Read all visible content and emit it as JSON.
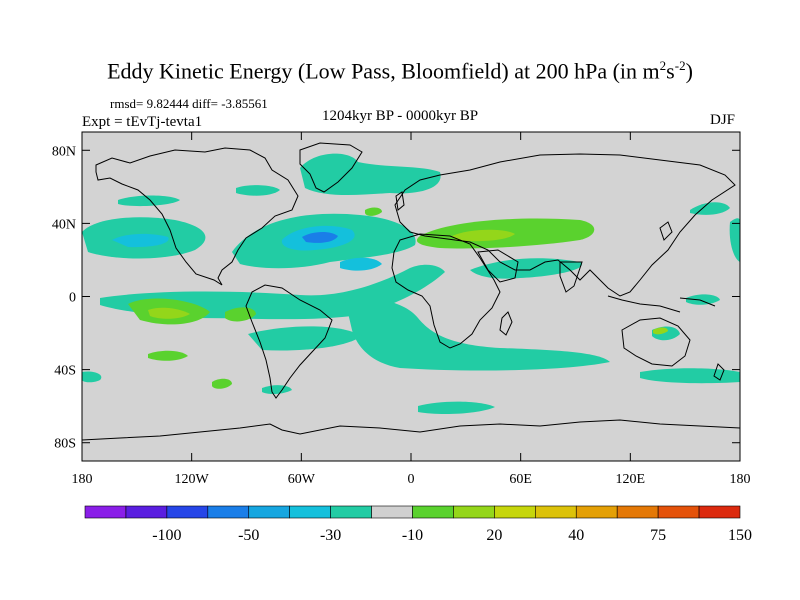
{
  "title": {
    "prefix": "Eddy Kinetic Energy (Low Pass, Bloomfield) at 200 hPa (in m",
    "sup1": "2",
    "mid": "s",
    "sup2": "-2",
    "suffix": ")"
  },
  "stats": "rmsd= 9.82444 diff= -3.85561",
  "experiment": "Expt = tEvTj-tevta1",
  "period": "1204kyr BP - 0000kyr BP",
  "season": "DJF",
  "map": {
    "projection": "cylindrical-equidistant",
    "land_fill": "#d3d3d3",
    "coastline_color": "#000000",
    "lon_range": [
      -180,
      180
    ],
    "lat_range": [
      -90,
      90
    ],
    "lat_ticks": [
      {
        "value": 80,
        "label": "80N"
      },
      {
        "value": 40,
        "label": "40N"
      },
      {
        "value": 0,
        "label": "0"
      },
      {
        "value": -40,
        "label": "40S"
      },
      {
        "value": -80,
        "label": "80S"
      }
    ],
    "lon_ticks": [
      {
        "value": -180,
        "label": "180"
      },
      {
        "value": -120,
        "label": "120W"
      },
      {
        "value": -60,
        "label": "60W"
      },
      {
        "value": 0,
        "label": "0"
      },
      {
        "value": 60,
        "label": "60E"
      },
      {
        "value": 120,
        "label": "120E"
      },
      {
        "value": 180,
        "label": "180"
      }
    ],
    "anomaly_regions": [
      {
        "name": "north-pacific-negative",
        "lon": -140,
        "lat": 32,
        "level": -30
      },
      {
        "name": "north-atlantic-negative",
        "lon": -50,
        "lat": 33,
        "level": -50
      },
      {
        "name": "greenland-negative",
        "lon": -35,
        "lat": 70,
        "level": -10
      },
      {
        "name": "tropical-atlantic-negative",
        "lon": -20,
        "lat": 10,
        "level": -10
      },
      {
        "name": "south-atlantic-negative",
        "lon": -10,
        "lat": -25,
        "level": -10
      },
      {
        "name": "mediterranean-positive",
        "lon": 40,
        "lat": 37,
        "level": 20
      },
      {
        "name": "middle-east-negative",
        "lon": 50,
        "lat": 25,
        "level": -10
      },
      {
        "name": "east-pacific-positive",
        "lon": -148,
        "lat": -5,
        "level": 20
      },
      {
        "name": "south-pacific-negative",
        "lon": -120,
        "lat": -30,
        "level": -10
      },
      {
        "name": "southern-ocean-negative",
        "lon": 10,
        "lat": -67,
        "level": -10
      },
      {
        "name": "australia-positive",
        "lon": 134,
        "lat": -25,
        "level": 20
      }
    ]
  },
  "colorbar": {
    "colors": [
      "#8a1ee8",
      "#5a1ee0",
      "#2646e8",
      "#1a7ee8",
      "#16a6e0",
      "#14c0dc",
      "#22cca4",
      "#d0d0d0",
      "#5ad22e",
      "#94d61a",
      "#c6d60c",
      "#dcc20a",
      "#e4a006",
      "#e47806",
      "#e4520a",
      "#dc2a0e"
    ],
    "labels": [
      "-100",
      "-50",
      "-30",
      "-10",
      "20",
      "40",
      "75",
      "150"
    ]
  }
}
